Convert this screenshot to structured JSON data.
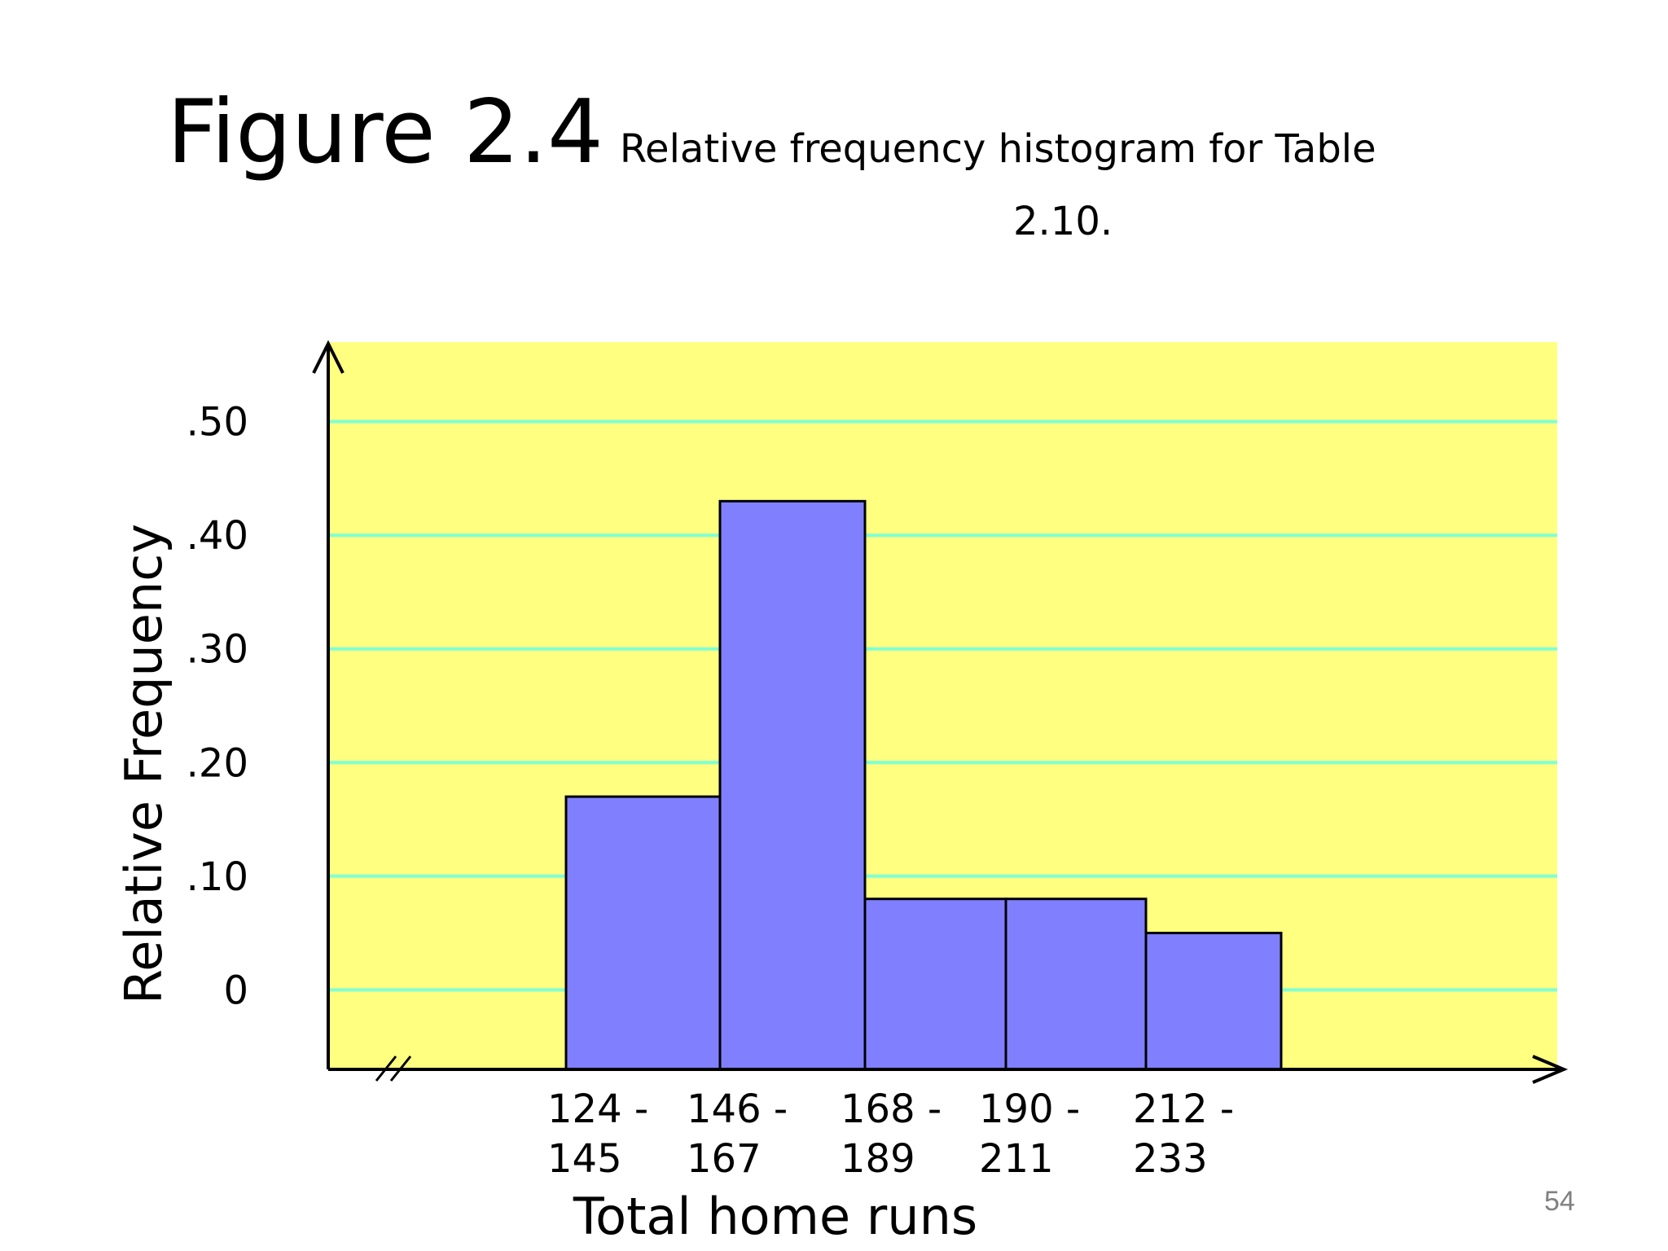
{
  "slide": {
    "title_main": "Figure 2.4",
    "title_caption_line1": "Relative frequency histogram for Table",
    "title_caption_line2": "2.10.",
    "page_number": "54"
  },
  "colors": {
    "plot_background": "#FFFF80",
    "gridline": "#7FFFD4",
    "bar_fill": "#8080FF",
    "bar_stroke": "#000000"
  },
  "chart_data": {
    "type": "bar",
    "title": "",
    "xlabel": "Total home runs",
    "ylabel": "Relative Frequency",
    "ylim": [
      -0.07,
      0.57
    ],
    "grid": true,
    "yticks": [
      0,
      0.1,
      0.2,
      0.3,
      0.4,
      0.5
    ],
    "ytick_labels": [
      "0",
      ".10",
      ".20",
      ".30",
      ".40",
      ".50"
    ],
    "categories": [
      [
        "124 -",
        "145"
      ],
      [
        "146 -",
        "167"
      ],
      [
        "168 -",
        "189"
      ],
      [
        "190 -",
        "211"
      ],
      [
        "212 -",
        "233"
      ]
    ],
    "values": [
      0.17,
      0.43,
      0.08,
      0.08,
      0.05
    ],
    "axis_break": true
  }
}
